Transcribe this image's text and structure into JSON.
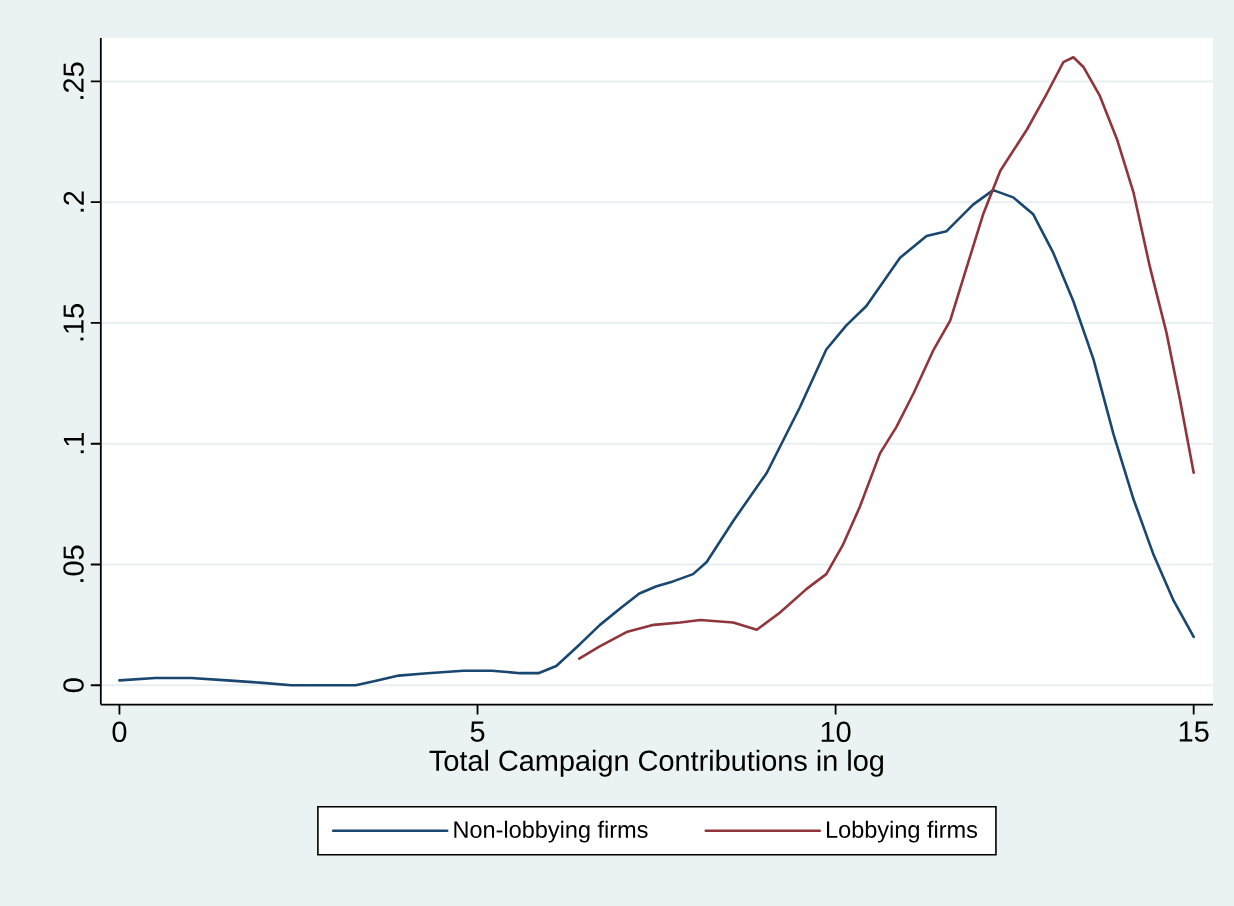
{
  "chart_data": {
    "type": "line",
    "xlabel": "Total Campaign Contributions in log",
    "xlim": [
      -0.26,
      15.27
    ],
    "ylim": [
      -0.008,
      0.268
    ],
    "xticks": [
      0,
      5,
      10,
      15
    ],
    "yticks": [
      0,
      {
        "value": 0.05,
        "label": ".05"
      },
      {
        "value": 0.1,
        "label": ".1"
      },
      {
        "value": 0.15,
        "label": ".15"
      },
      {
        "value": 0.2,
        "label": ".2"
      },
      {
        "value": 0.25,
        "label": ".25"
      }
    ],
    "grid": "y",
    "legend": "bottom",
    "series": [
      {
        "name": "Non-lobbying firms",
        "color": "#1a476f",
        "x": [
          0,
          0.5,
          1.0,
          1.5,
          2.0,
          2.4,
          2.9,
          3.3,
          3.6,
          3.9,
          4.3,
          4.8,
          5.2,
          5.6,
          5.85,
          6.1,
          6.43,
          6.71,
          7.0,
          7.26,
          7.5,
          7.73,
          8.01,
          8.2,
          8.57,
          9.04,
          9.5,
          9.87,
          10.15,
          10.43,
          10.9,
          11.27,
          11.55,
          11.92,
          12.2,
          12.48,
          12.76,
          13.04,
          13.32,
          13.6,
          13.88,
          14.16,
          14.44,
          14.72,
          15.0
        ],
        "values": [
          0.002,
          0.003,
          0.003,
          0.002,
          0.001,
          0,
          0,
          0,
          0.002,
          0.004,
          0.005,
          0.006,
          0.006,
          0.005,
          0.005,
          0.008,
          0.017,
          0.025,
          0.032,
          0.038,
          0.041,
          0.043,
          0.046,
          0.051,
          0.068,
          0.088,
          0.115,
          0.139,
          0.149,
          0.157,
          0.177,
          0.186,
          0.188,
          0.199,
          0.205,
          0.202,
          0.195,
          0.179,
          0.159,
          0.135,
          0.104,
          0.077,
          0.054,
          0.035,
          0.02
        ]
      },
      {
        "name": "Lobbying firms",
        "color": "#90353b",
        "x": [
          6.42,
          6.7,
          7.08,
          7.46,
          7.83,
          8.11,
          8.57,
          8.9,
          9.22,
          9.6,
          9.87,
          10.1,
          10.34,
          10.62,
          10.85,
          11.09,
          11.37,
          11.6,
          11.83,
          12.06,
          12.3,
          12.67,
          12.95,
          13.18,
          13.32,
          13.46,
          13.69,
          13.93,
          14.16,
          14.39,
          14.62,
          14.81,
          15.0
        ],
        "values": [
          0.011,
          0.016,
          0.022,
          0.025,
          0.026,
          0.027,
          0.026,
          0.023,
          0.03,
          0.04,
          0.046,
          0.058,
          0.074,
          0.096,
          0.107,
          0.121,
          0.139,
          0.151,
          0.173,
          0.195,
          0.213,
          0.23,
          0.245,
          0.258,
          0.26,
          0.256,
          0.244,
          0.226,
          0.204,
          0.173,
          0.146,
          0.118,
          0.088
        ]
      }
    ]
  }
}
